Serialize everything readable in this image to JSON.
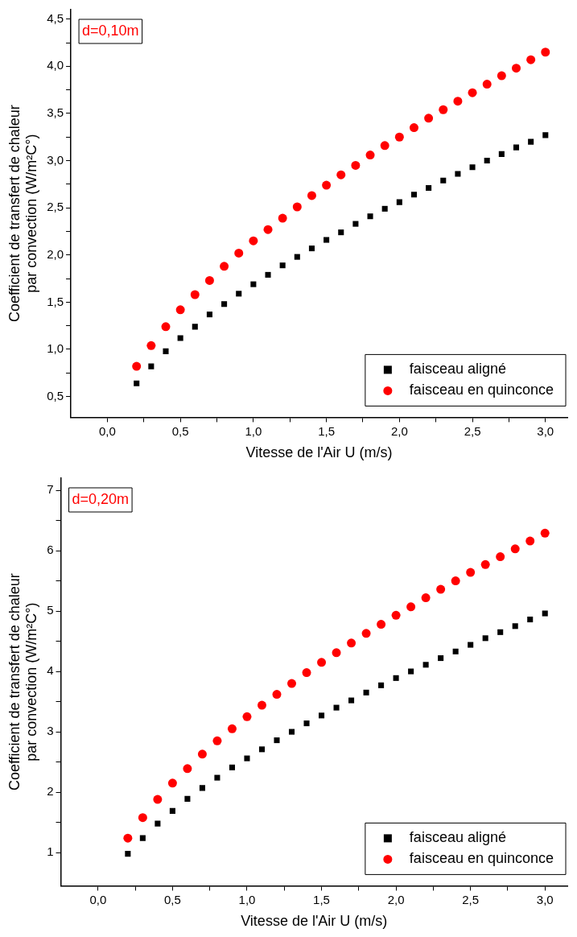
{
  "chart_data": [
    {
      "type": "scatter",
      "ylabel": "Coefficient de transfert de chaleur\npar convection (W/m²C°)",
      "xlabel": "Vitesse de l'Air U (m/s)",
      "annotations": [
        "d=0,10m"
      ],
      "x": [
        0.2,
        0.3,
        0.4,
        0.5,
        0.6,
        0.7,
        0.8,
        0.9,
        1.0,
        1.1,
        1.2,
        1.3,
        1.4,
        1.5,
        1.6,
        1.7,
        1.8,
        1.9,
        2.0,
        2.1,
        2.2,
        2.3,
        2.4,
        2.5,
        2.6,
        2.7,
        2.8,
        2.9,
        3.0
      ],
      "series": [
        {
          "name": "faisceau aligné",
          "color": "#000000",
          "marker": "square",
          "values": [
            0.64,
            0.82,
            0.98,
            1.12,
            1.24,
            1.37,
            1.48,
            1.59,
            1.69,
            1.79,
            1.89,
            1.98,
            2.07,
            2.16,
            2.24,
            2.33,
            2.41,
            2.49,
            2.56,
            2.64,
            2.71,
            2.79,
            2.86,
            2.93,
            3.0,
            3.07,
            3.14,
            3.2,
            3.27
          ]
        },
        {
          "name": "faisceau en quinconce",
          "color": "#ff0000",
          "marker": "circle",
          "values": [
            0.82,
            1.04,
            1.24,
            1.42,
            1.58,
            1.73,
            1.88,
            2.02,
            2.15,
            2.27,
            2.39,
            2.51,
            2.63,
            2.74,
            2.85,
            2.95,
            3.06,
            3.16,
            3.25,
            3.35,
            3.45,
            3.54,
            3.63,
            3.72,
            3.81,
            3.9,
            3.98,
            4.07,
            4.15
          ]
        }
      ],
      "xlim": [
        -0.25,
        3.15
      ],
      "xticks": [
        {
          "value": 0,
          "label": "0,0"
        },
        {
          "value": 0.25,
          "label": null
        },
        {
          "value": 0.5,
          "label": "0,5"
        },
        {
          "value": 0.75,
          "label": null
        },
        {
          "value": 1,
          "label": "1,0"
        },
        {
          "value": 1.25,
          "label": null
        },
        {
          "value": 1.5,
          "label": "1,5"
        },
        {
          "value": 1.75,
          "label": null
        },
        {
          "value": 2,
          "label": "2,0"
        },
        {
          "value": 2.25,
          "label": null
        },
        {
          "value": 2.5,
          "label": "2,5"
        },
        {
          "value": 2.75,
          "label": null
        },
        {
          "value": 3,
          "label": "3,0"
        }
      ],
      "ylim": [
        0.28,
        4.6
      ],
      "yticks": [
        {
          "value": 0.5,
          "label": "0,5"
        },
        {
          "value": 0.75,
          "label": null
        },
        {
          "value": 1,
          "label": "1,0"
        },
        {
          "value": 1.25,
          "label": null
        },
        {
          "value": 1.5,
          "label": "1,5"
        },
        {
          "value": 1.75,
          "label": null
        },
        {
          "value": 2,
          "label": "2,0"
        },
        {
          "value": 2.25,
          "label": null
        },
        {
          "value": 2.5,
          "label": "2,5"
        },
        {
          "value": 2.75,
          "label": null
        },
        {
          "value": 3,
          "label": "3,0"
        },
        {
          "value": 3.25,
          "label": null
        },
        {
          "value": 3.5,
          "label": "3,5"
        },
        {
          "value": 3.75,
          "label": null
        },
        {
          "value": 4,
          "label": "4,0"
        },
        {
          "value": 4.25,
          "label": null
        },
        {
          "value": 4.5,
          "label": "4,5"
        }
      ],
      "grid": false,
      "legend": "bottom right"
    },
    {
      "type": "scatter",
      "ylabel": "Coefficient de transfert de chaleur\npar convection (W/m²C°)",
      "xlabel": "Vitesse de l'Air U (m/s)",
      "annotations": [
        "d=0,20m"
      ],
      "x": [
        0.2,
        0.3,
        0.4,
        0.5,
        0.6,
        0.7,
        0.8,
        0.9,
        1.0,
        1.1,
        1.2,
        1.3,
        1.4,
        1.5,
        1.6,
        1.7,
        1.8,
        1.9,
        2.0,
        2.1,
        2.2,
        2.3,
        2.4,
        2.5,
        2.6,
        2.7,
        2.8,
        2.9,
        3.0
      ],
      "series": [
        {
          "name": "faisceau aligné",
          "color": "#000000",
          "marker": "square",
          "values": [
            0.98,
            1.24,
            1.48,
            1.69,
            1.89,
            2.07,
            2.24,
            2.41,
            2.56,
            2.71,
            2.86,
            3.0,
            3.14,
            3.27,
            3.4,
            3.52,
            3.65,
            3.77,
            3.89,
            4.0,
            4.11,
            4.22,
            4.33,
            4.44,
            4.55,
            4.65,
            4.75,
            4.86,
            4.96
          ]
        },
        {
          "name": "faisceau en quinconce",
          "color": "#ff0000",
          "marker": "circle",
          "values": [
            1.24,
            1.58,
            1.88,
            2.15,
            2.39,
            2.63,
            2.85,
            3.05,
            3.25,
            3.44,
            3.62,
            3.8,
            3.98,
            4.15,
            4.31,
            4.47,
            4.63,
            4.78,
            4.93,
            5.07,
            5.22,
            5.36,
            5.5,
            5.64,
            5.77,
            5.9,
            6.03,
            6.16,
            6.29
          ]
        }
      ],
      "xlim": [
        -0.25,
        3.15
      ],
      "xticks": [
        {
          "value": 0,
          "label": "0,0"
        },
        {
          "value": 0.25,
          "label": null
        },
        {
          "value": 0.5,
          "label": "0,5"
        },
        {
          "value": 0.75,
          "label": null
        },
        {
          "value": 1,
          "label": "1,0"
        },
        {
          "value": 1.25,
          "label": null
        },
        {
          "value": 1.5,
          "label": "1,5"
        },
        {
          "value": 1.75,
          "label": null
        },
        {
          "value": 2,
          "label": "2,0"
        },
        {
          "value": 2.25,
          "label": null
        },
        {
          "value": 2.5,
          "label": "2,5"
        },
        {
          "value": 2.75,
          "label": null
        },
        {
          "value": 3,
          "label": "3,0"
        }
      ],
      "ylim": [
        0.45,
        7.2
      ],
      "yticks": [
        1,
        {
          "value": 1.5,
          "label": null
        },
        2,
        {
          "value": 2.5,
          "label": null
        },
        3,
        {
          "value": 3.5,
          "label": null
        },
        4,
        {
          "value": 4.5,
          "label": null
        },
        5,
        {
          "value": 5.5,
          "label": null
        },
        6,
        {
          "value": 6.5,
          "label": null
        },
        7
      ],
      "grid": false,
      "legend": "bottom right"
    }
  ]
}
